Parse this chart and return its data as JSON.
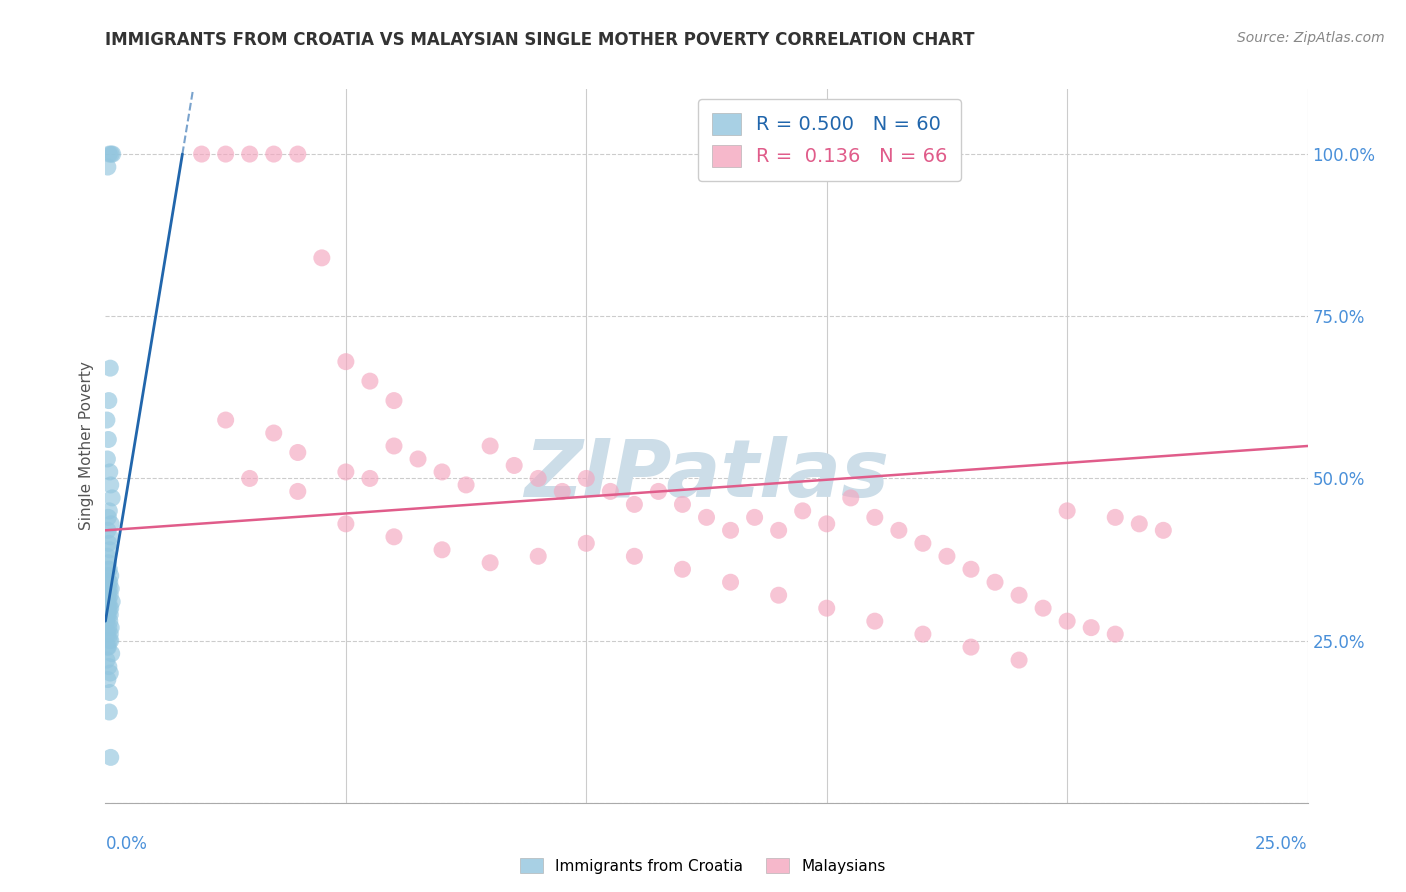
{
  "title": "IMMIGRANTS FROM CROATIA VS MALAYSIAN SINGLE MOTHER POVERTY CORRELATION CHART",
  "source": "Source: ZipAtlas.com",
  "ylabel": "Single Mother Poverty",
  "legend1_color": "#92c5de",
  "legend2_color": "#f4a6bf",
  "trendline1_color": "#2166ac",
  "trendline2_color": "#e05c8a",
  "watermark": "ZIPatlas",
  "watermark_color": "#ccdde8",
  "background_color": "#ffffff",
  "grid_color": "#cccccc",
  "title_color": "#333333",
  "right_axis_label_color": "#4a90d9",
  "xlim": [
    0.0,
    0.25
  ],
  "ylim": [
    0.0,
    1.1
  ],
  "xtick_positions": [
    0.0,
    0.05,
    0.1,
    0.15,
    0.2,
    0.25
  ],
  "ytick_positions": [
    0.0,
    0.25,
    0.5,
    0.75,
    1.0
  ],
  "scatter1_x": [
    0.0008,
    0.0012,
    0.0015,
    0.0005,
    0.001,
    0.0007,
    0.0003,
    0.0006,
    0.0004,
    0.0009,
    0.0011,
    0.0014,
    0.0008,
    0.0006,
    0.0012,
    0.0005,
    0.001,
    0.0007,
    0.0009,
    0.0004,
    0.0006,
    0.0008,
    0.0005,
    0.0011,
    0.0003,
    0.0007,
    0.0009,
    0.0012,
    0.0005,
    0.0008,
    0.001,
    0.0004,
    0.0006,
    0.0014,
    0.0003,
    0.0007,
    0.0011,
    0.0005,
    0.0008,
    0.001,
    0.0004,
    0.0006,
    0.0009,
    0.0003,
    0.0007,
    0.0012,
    0.001,
    0.0005,
    0.0008,
    0.0011,
    0.0004,
    0.0006,
    0.0013,
    0.0003,
    0.0007,
    0.001,
    0.0005,
    0.0009,
    0.0008,
    0.0011
  ],
  "scatter1_y": [
    1.0,
    1.0,
    1.0,
    0.98,
    0.67,
    0.62,
    0.59,
    0.56,
    0.53,
    0.51,
    0.49,
    0.47,
    0.45,
    0.44,
    0.43,
    0.42,
    0.41,
    0.4,
    0.39,
    0.38,
    0.37,
    0.36,
    0.36,
    0.35,
    0.35,
    0.34,
    0.34,
    0.33,
    0.33,
    0.33,
    0.32,
    0.32,
    0.32,
    0.31,
    0.31,
    0.31,
    0.3,
    0.3,
    0.3,
    0.29,
    0.29,
    0.29,
    0.28,
    0.28,
    0.27,
    0.27,
    0.26,
    0.26,
    0.25,
    0.25,
    0.24,
    0.24,
    0.23,
    0.22,
    0.21,
    0.2,
    0.19,
    0.17,
    0.14,
    0.07
  ],
  "scatter2_x": [
    0.02,
    0.025,
    0.03,
    0.035,
    0.04,
    0.045,
    0.05,
    0.055,
    0.06,
    0.025,
    0.035,
    0.04,
    0.05,
    0.055,
    0.06,
    0.065,
    0.07,
    0.075,
    0.08,
    0.085,
    0.09,
    0.095,
    0.1,
    0.105,
    0.11,
    0.115,
    0.12,
    0.125,
    0.13,
    0.135,
    0.14,
    0.145,
    0.15,
    0.155,
    0.16,
    0.165,
    0.17,
    0.175,
    0.18,
    0.185,
    0.19,
    0.195,
    0.2,
    0.205,
    0.21,
    0.215,
    0.22,
    0.03,
    0.04,
    0.05,
    0.06,
    0.07,
    0.08,
    0.09,
    0.1,
    0.11,
    0.12,
    0.13,
    0.14,
    0.15,
    0.16,
    0.17,
    0.18,
    0.19,
    0.2,
    0.21
  ],
  "scatter2_y": [
    1.0,
    1.0,
    1.0,
    1.0,
    1.0,
    0.84,
    0.68,
    0.65,
    0.62,
    0.59,
    0.57,
    0.54,
    0.51,
    0.5,
    0.55,
    0.53,
    0.51,
    0.49,
    0.55,
    0.52,
    0.5,
    0.48,
    0.5,
    0.48,
    0.46,
    0.48,
    0.46,
    0.44,
    0.42,
    0.44,
    0.42,
    0.45,
    0.43,
    0.47,
    0.44,
    0.42,
    0.4,
    0.38,
    0.36,
    0.34,
    0.32,
    0.3,
    0.28,
    0.27,
    0.26,
    0.43,
    0.42,
    0.5,
    0.48,
    0.43,
    0.41,
    0.39,
    0.37,
    0.38,
    0.4,
    0.38,
    0.36,
    0.34,
    0.32,
    0.3,
    0.28,
    0.26,
    0.24,
    0.22,
    0.45,
    0.44
  ],
  "trendline1_x": [
    0.0,
    0.016
  ],
  "trendline1_y": [
    0.28,
    1.0
  ],
  "trendline2_x": [
    0.0,
    0.25
  ],
  "trendline2_y": [
    0.42,
    0.55
  ]
}
